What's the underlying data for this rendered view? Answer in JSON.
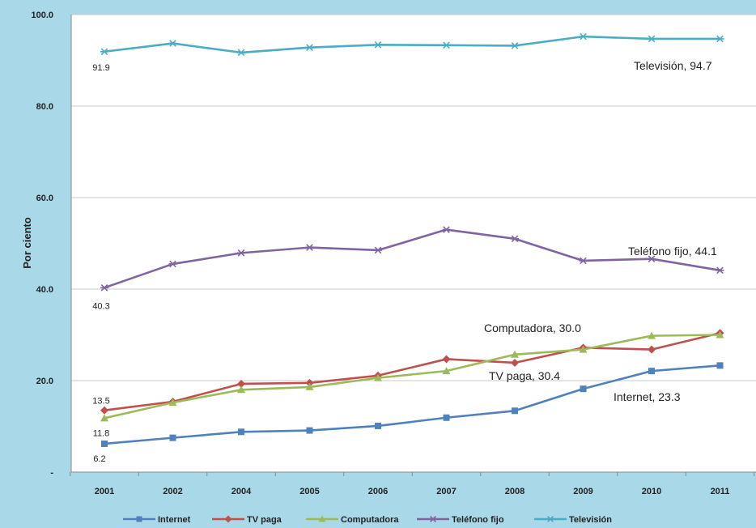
{
  "chart_data": {
    "type": "line",
    "title": "",
    "xlabel": "",
    "ylabel": "Por ciento",
    "categories": [
      "2001",
      "2002",
      "2004",
      "2005",
      "2006",
      "2007",
      "2008",
      "2009",
      "2010",
      "2011"
    ],
    "ylim": [
      0,
      100
    ],
    "yticks": [
      {
        "value": 0,
        "label": "-"
      },
      {
        "value": 20,
        "label": "20.0"
      },
      {
        "value": 40,
        "label": "40.0"
      },
      {
        "value": 60,
        "label": "60.0"
      },
      {
        "value": 80,
        "label": "80.0"
      },
      {
        "value": 100,
        "label": "100.0"
      }
    ],
    "grid": true,
    "legend_position": "bottom",
    "series": [
      {
        "name": "Internet",
        "color": "#4f81bd",
        "marker": "square",
        "values": [
          6.2,
          7.5,
          8.8,
          9.1,
          10.1,
          11.9,
          13.4,
          18.2,
          22.1,
          23.3
        ],
        "start_label": "6.2",
        "end_label": "Internet,  23.3"
      },
      {
        "name": "TV paga",
        "color": "#c0504d",
        "marker": "diamond",
        "values": [
          13.5,
          15.4,
          19.3,
          19.5,
          21.1,
          24.7,
          23.9,
          27.2,
          26.8,
          30.4
        ],
        "start_label": "13.5",
        "end_label": "TV paga,  30.4"
      },
      {
        "name": "Computadora",
        "color": "#9bbb59",
        "marker": "triangle",
        "values": [
          11.8,
          15.2,
          18.0,
          18.6,
          20.6,
          22.1,
          25.7,
          26.8,
          29.8,
          30.0
        ],
        "start_label": "11.8",
        "end_label": "Computadora,  30.0"
      },
      {
        "name": "Teléfono fijo",
        "color": "#8064a2",
        "marker": "star",
        "values": [
          40.3,
          45.5,
          47.9,
          49.1,
          48.5,
          53.0,
          51.0,
          46.2,
          46.6,
          44.1
        ],
        "start_label": "40.3",
        "end_label": "Teléfono fijo,  44.1"
      },
      {
        "name": "Televisión",
        "color": "#4bacc6",
        "marker": "star",
        "values": [
          91.9,
          93.7,
          91.7,
          92.8,
          93.4,
          93.3,
          93.2,
          95.2,
          94.7,
          94.7
        ],
        "start_label": "91.9",
        "end_label": "Televisión,  94.7"
      }
    ]
  }
}
